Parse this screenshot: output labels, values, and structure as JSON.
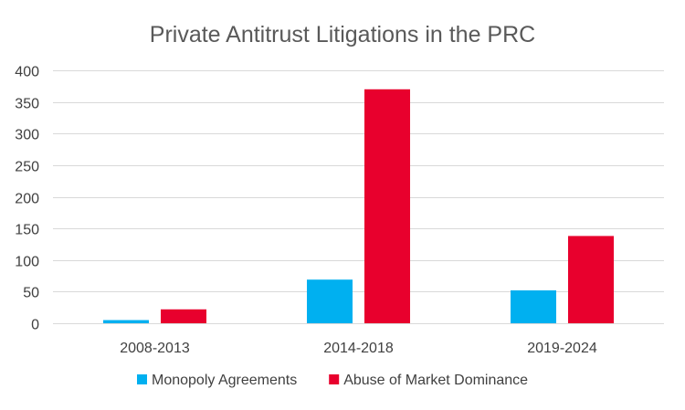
{
  "chart_data": {
    "type": "bar",
    "title": "Private Antitrust Litigations in the PRC",
    "xlabel": "",
    "ylabel": "",
    "categories": [
      "2008-2013",
      "2014-2018",
      "2019-2024"
    ],
    "series": [
      {
        "name": "Monopoly Agreements",
        "values": [
          5,
          69,
          52
        ],
        "color": "#00b0f0"
      },
      {
        "name": "Abuse of Market Dominance",
        "values": [
          22,
          370,
          138
        ],
        "color": "#e8002d"
      }
    ],
    "ylim": [
      0,
      400
    ],
    "yticks": [
      0,
      50,
      100,
      150,
      200,
      250,
      300,
      350,
      400
    ],
    "grid": true,
    "legend_position": "bottom"
  }
}
